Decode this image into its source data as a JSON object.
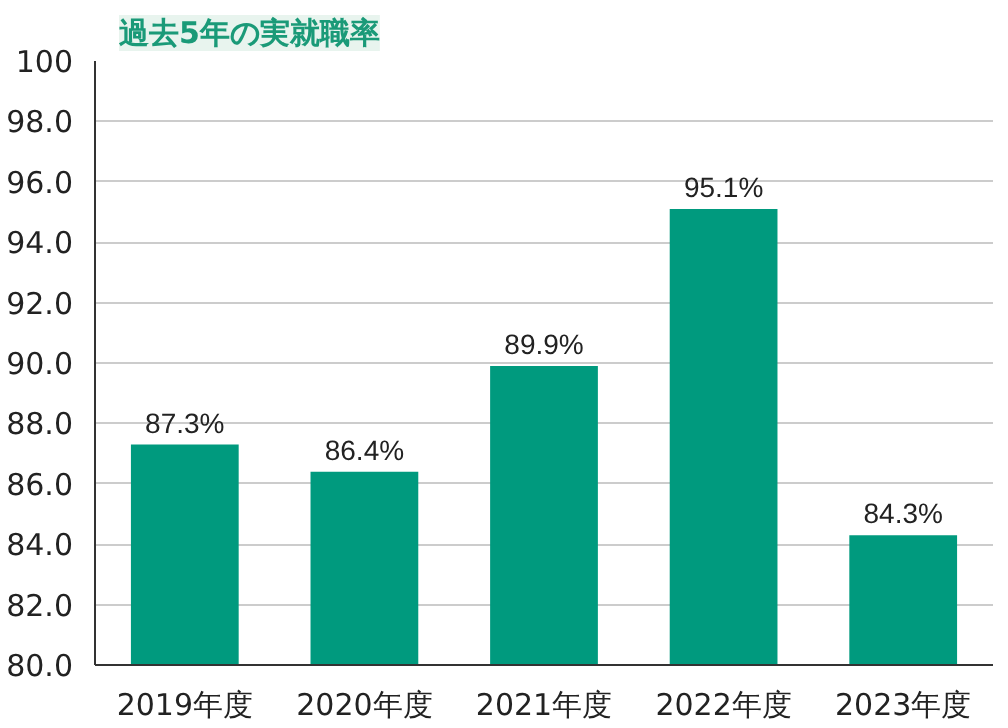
{
  "chart_data": {
    "type": "bar",
    "title": "過去5年の実就職率",
    "categories": [
      "2019年度",
      "2020年度",
      "2021年度",
      "2022年度",
      "2023年度"
    ],
    "values": [
      87.3,
      86.4,
      89.9,
      95.1,
      84.3
    ],
    "value_labels": [
      "87.3%",
      "86.4%",
      "89.9%",
      "95.1%",
      "84.3%"
    ],
    "color": "#009a7e",
    "ylim": [
      80,
      100
    ],
    "yticks": [
      {
        "value": 80,
        "label": "80.0"
      },
      {
        "value": 82,
        "label": "82.0"
      },
      {
        "value": 84,
        "label": "84.0"
      },
      {
        "value": 86,
        "label": "86.0"
      },
      {
        "value": 88,
        "label": "88.0"
      },
      {
        "value": 90,
        "label": "90.0"
      },
      {
        "value": 92,
        "label": "92.0"
      },
      {
        "value": 94,
        "label": "94.0"
      },
      {
        "value": 96,
        "label": "96.0"
      },
      {
        "value": 98,
        "label": "98.0"
      },
      100
    ],
    "grid": "y"
  }
}
